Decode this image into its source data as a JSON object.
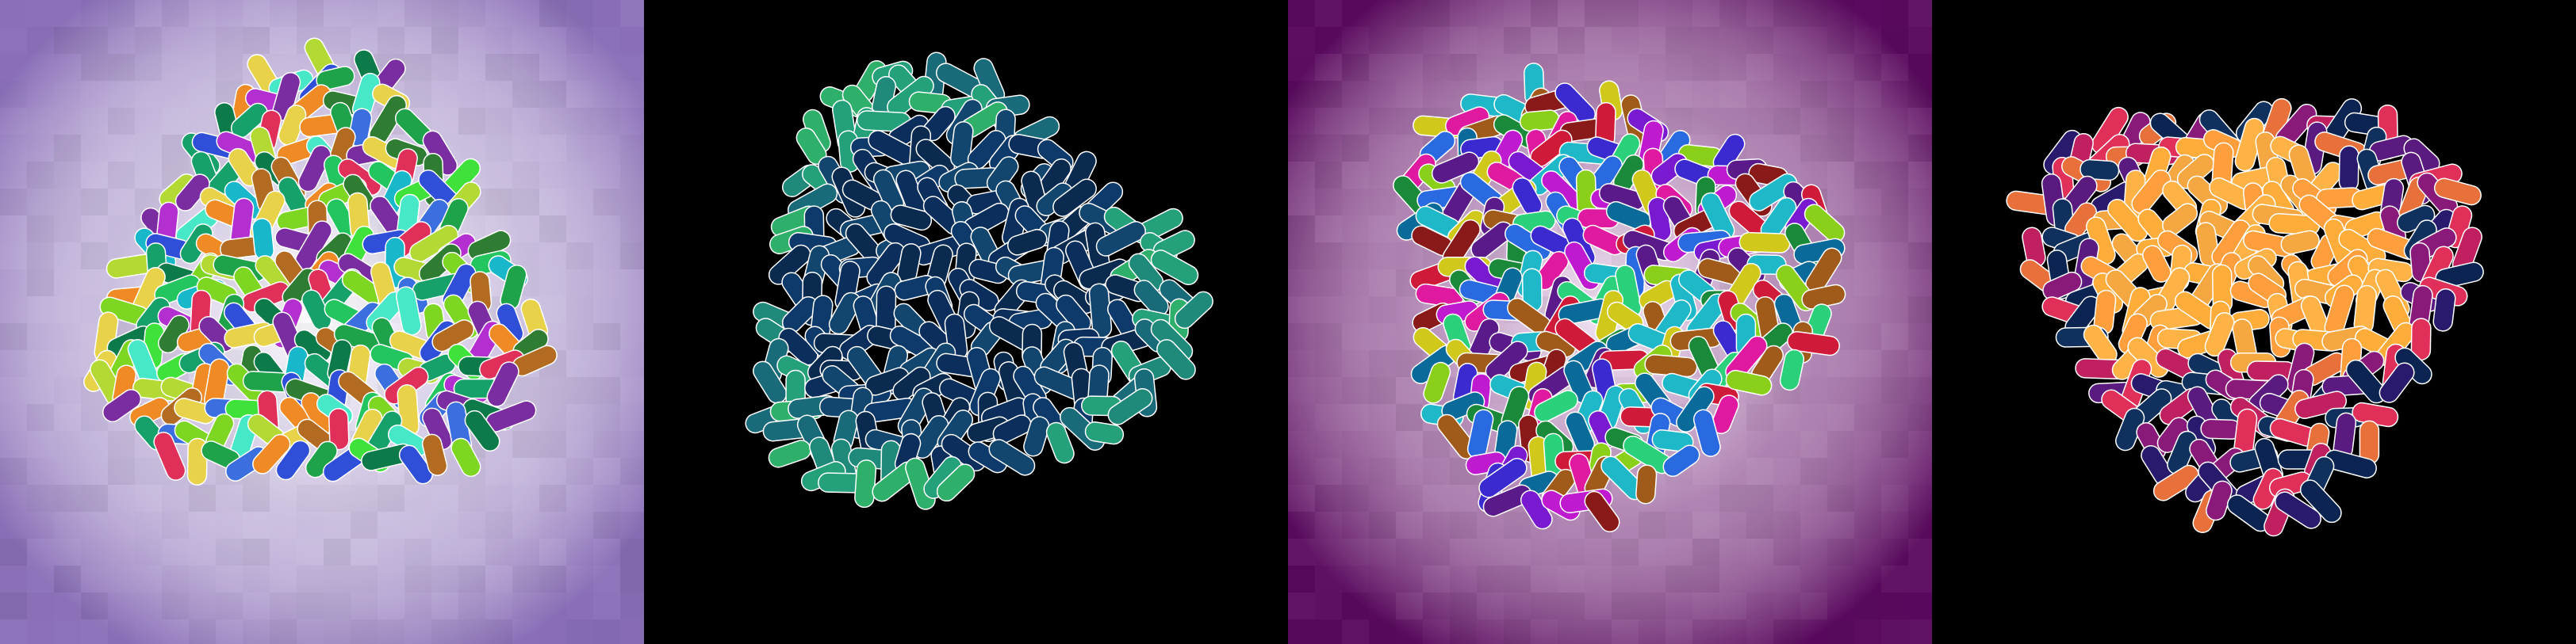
{
  "figure": {
    "panels": [
      {
        "name": "panel-1",
        "background": "#8a6fb8",
        "glow": "#ffffff",
        "tiled": true,
        "palette": [
          "#3fe23a",
          "#22c55e",
          "#7cd622",
          "#1fa34a",
          "#2e7d32",
          "#46e8c8",
          "#18b7c9",
          "#3b6fe0",
          "#2f4fd8",
          "#b3d934",
          "#e8d24a",
          "#f08a24",
          "#e0305a",
          "#b42fd0",
          "#7a2da0",
          "#b26b20",
          "#16a06a",
          "#0d7a4a"
        ],
        "outline": "#ffffff"
      },
      {
        "name": "panel-2",
        "background": "#000000",
        "glow": "#000000",
        "tiled": false,
        "palette": [
          "#0b2e5c",
          "#0e3a6b",
          "#12466f",
          "#0a2a50",
          "#1a6b7a",
          "#1f8a7a",
          "#24a07a",
          "#2fb06a"
        ],
        "outline": "#ffffff"
      },
      {
        "name": "panel-3",
        "background": "#5a0a5e",
        "glow": "#f4e6f6",
        "tiled": true,
        "palette": [
          "#2ad07a",
          "#1fb8c8",
          "#2a6ae0",
          "#3a2ad0",
          "#7a1ad0",
          "#c01ad0",
          "#e01aa0",
          "#d01a3a",
          "#8a1a1a",
          "#a05a1a",
          "#d0c81a",
          "#8ad01a",
          "#1a8a3a",
          "#5a1a8a",
          "#0a6a9a"
        ],
        "outline": "#ffffff"
      },
      {
        "name": "panel-4",
        "background": "#000000",
        "glow": "#000000",
        "tiled": false,
        "palette": [
          "#ffb347",
          "#ffad3a",
          "#f5a742",
          "#ff9e3d",
          "#0b2452",
          "#10305e",
          "#2a1a6e",
          "#5a1a80",
          "#8a1a7a",
          "#c02060",
          "#e0305a",
          "#e8703a"
        ],
        "outline": "#ffffff"
      }
    ]
  }
}
